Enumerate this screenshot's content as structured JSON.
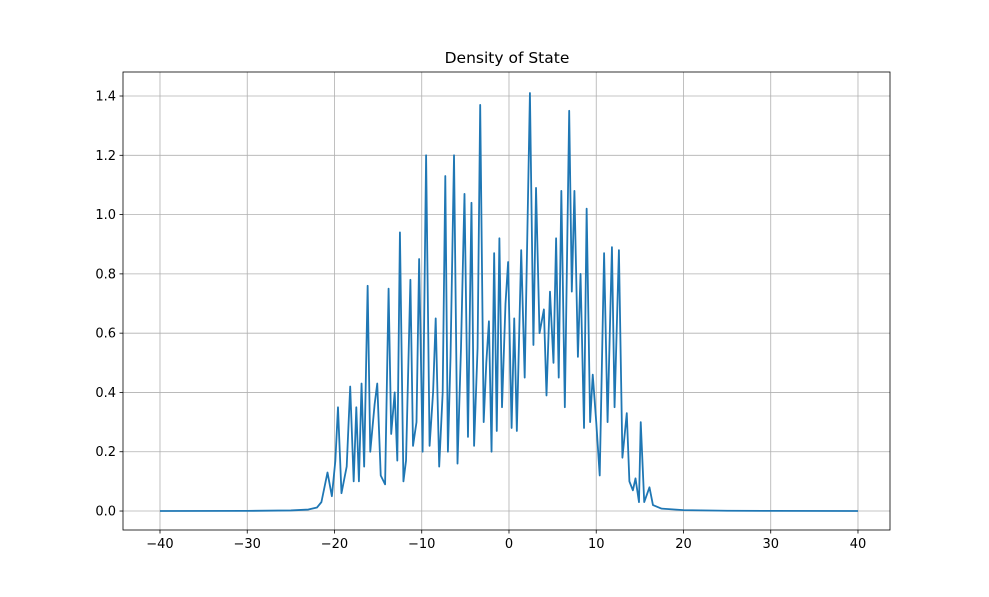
{
  "chart_data": {
    "type": "line",
    "title": "Density of State",
    "x": [
      -40,
      -30,
      -25,
      -23,
      -22,
      -21.5,
      -20.8,
      -20.3,
      -19.9,
      -19.6,
      -19.2,
      -18.6,
      -18.2,
      -17.8,
      -17.5,
      -17.2,
      -16.9,
      -16.6,
      -16.2,
      -15.9,
      -15.4,
      -15.1,
      -14.7,
      -14.2,
      -13.8,
      -13.5,
      -13.1,
      -12.8,
      -12.5,
      -12.1,
      -11.8,
      -11.3,
      -11.0,
      -10.6,
      -10.3,
      -9.9,
      -9.5,
      -9.1,
      -8.7,
      -8.4,
      -8.0,
      -7.6,
      -7.3,
      -7.0,
      -6.7,
      -6.3,
      -5.9,
      -5.5,
      -5.1,
      -4.7,
      -4.3,
      -4.0,
      -3.6,
      -3.3,
      -2.9,
      -2.6,
      -2.3,
      -2.0,
      -1.7,
      -1.4,
      -1.1,
      -0.8,
      -0.4,
      -0.1,
      0.3,
      0.6,
      0.9,
      1.4,
      1.8,
      2.4,
      2.8,
      3.1,
      3.5,
      4.0,
      4.3,
      4.7,
      5.1,
      5.4,
      5.7,
      6.0,
      6.4,
      6.9,
      7.2,
      7.5,
      7.9,
      8.2,
      8.6,
      8.9,
      9.3,
      9.6,
      10.0,
      10.4,
      10.9,
      11.3,
      11.8,
      12.1,
      12.6,
      13.0,
      13.5,
      13.8,
      14.2,
      14.5,
      14.9,
      15.1,
      15.5,
      16.1,
      16.5,
      17.5,
      20,
      25,
      30,
      40
    ],
    "values": [
      0.0002,
      0.0005,
      0.002,
      0.005,
      0.012,
      0.03,
      0.13,
      0.05,
      0.17,
      0.35,
      0.06,
      0.15,
      0.42,
      0.1,
      0.35,
      0.1,
      0.43,
      0.15,
      0.76,
      0.2,
      0.36,
      0.43,
      0.12,
      0.09,
      0.75,
      0.26,
      0.4,
      0.17,
      0.94,
      0.1,
      0.17,
      0.78,
      0.22,
      0.3,
      0.85,
      0.2,
      1.2,
      0.22,
      0.4,
      0.65,
      0.15,
      0.4,
      1.13,
      0.2,
      0.52,
      1.2,
      0.16,
      0.55,
      1.07,
      0.25,
      1.04,
      0.22,
      0.55,
      1.37,
      0.3,
      0.5,
      0.64,
      0.2,
      0.87,
      0.27,
      0.92,
      0.35,
      0.7,
      0.84,
      0.28,
      0.65,
      0.27,
      0.88,
      0.45,
      1.41,
      0.56,
      1.09,
      0.6,
      0.68,
      0.39,
      0.74,
      0.5,
      0.92,
      0.45,
      1.08,
      0.35,
      1.35,
      0.74,
      1.08,
      0.52,
      0.8,
      0.28,
      1.02,
      0.3,
      0.46,
      0.3,
      0.12,
      0.87,
      0.3,
      0.89,
      0.35,
      0.88,
      0.18,
      0.33,
      0.1,
      0.07,
      0.11,
      0.03,
      0.3,
      0.03,
      0.08,
      0.02,
      0.008,
      0.003,
      0.001,
      0.0005,
      0.0002
    ],
    "color": "#1f77b4",
    "xlim": [
      -44.24,
      43.67
    ],
    "ylim": [
      -0.064,
      1.481
    ],
    "xticks": [
      {
        "value": -40,
        "label": "−40"
      },
      {
        "value": -30,
        "label": "−30"
      },
      {
        "value": -20,
        "label": "−20"
      },
      {
        "value": -10,
        "label": "−10"
      },
      0,
      10,
      20,
      30,
      40
    ],
    "yticks": [
      {
        "value": 0,
        "label": "0.0"
      },
      0.2,
      0.4,
      0.6,
      0.8,
      {
        "value": 1,
        "label": "1.0"
      },
      1.2,
      1.4
    ],
    "grid": true
  }
}
